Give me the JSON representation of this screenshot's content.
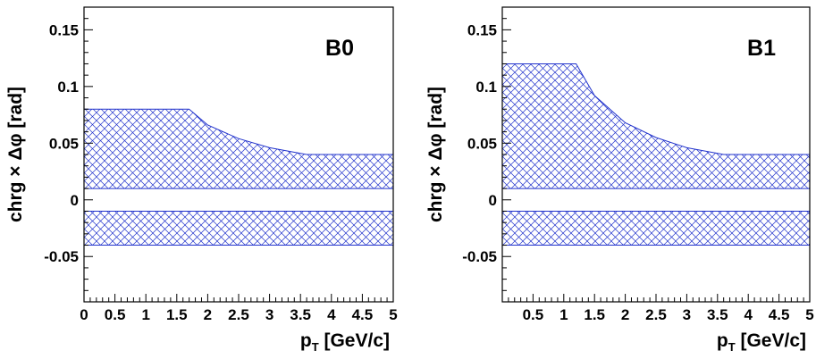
{
  "chart_data": [
    {
      "type": "area",
      "title": "B0",
      "xlabel": "p_T [GeV/c]",
      "xlabel_main": "p",
      "xlabel_sub": "T",
      "xlabel_rest": " [GeV/c]",
      "ylabel": "chrg × Δφ [rad]",
      "xlim": [
        0,
        5
      ],
      "ylim": [
        -0.09,
        0.17
      ],
      "xticks": [
        "0",
        "0.5",
        "1",
        "1.5",
        "2",
        "2.5",
        "3",
        "3.5",
        "4",
        "4.5",
        "5"
      ],
      "yticks": [
        "-0.05",
        "0",
        "0.05",
        "0.1",
        "0.15"
      ],
      "grid": false,
      "series": [
        {
          "band": "upper",
          "x": [
            0,
            1.7,
            2.0,
            2.5,
            3.0,
            3.6,
            5.0
          ],
          "upper": [
            0.08,
            0.08,
            0.066,
            0.054,
            0.046,
            0.04,
            0.04
          ],
          "lower": [
            0.01,
            0.01,
            0.01,
            0.01,
            0.01,
            0.01,
            0.01
          ]
        },
        {
          "band": "lower",
          "x": [
            0,
            5.0
          ],
          "upper": [
            -0.01,
            -0.01
          ],
          "lower": [
            -0.04,
            -0.04
          ]
        }
      ],
      "colors": {
        "band": "#2233cc"
      }
    },
    {
      "type": "area",
      "title": "B1",
      "xlabel": "p_T [GeV/c]",
      "xlabel_main": "p",
      "xlabel_sub": "T",
      "xlabel_rest": " [GeV/c]",
      "ylabel": "chrg × Δφ [rad]",
      "xlim": [
        0,
        5
      ],
      "ylim": [
        -0.09,
        0.17
      ],
      "xticks": [
        "0.5",
        "1",
        "1.5",
        "2",
        "2.5",
        "3",
        "3.5",
        "4",
        "4.5",
        "5"
      ],
      "yticks": [
        "-0.05",
        "0",
        "0.05",
        "0.1",
        "0.15"
      ],
      "grid": false,
      "series": [
        {
          "band": "upper",
          "x": [
            0,
            1.2,
            1.5,
            2.0,
            2.5,
            3.0,
            3.6,
            5.0
          ],
          "upper": [
            0.12,
            0.12,
            0.092,
            0.068,
            0.055,
            0.046,
            0.04,
            0.04
          ],
          "lower": [
            0.01,
            0.01,
            0.01,
            0.01,
            0.01,
            0.01,
            0.01,
            0.01
          ]
        },
        {
          "band": "lower",
          "x": [
            0,
            5.0
          ],
          "upper": [
            -0.01,
            -0.01
          ],
          "lower": [
            -0.04,
            -0.04
          ]
        }
      ],
      "colors": {
        "band": "#2233cc"
      }
    }
  ]
}
